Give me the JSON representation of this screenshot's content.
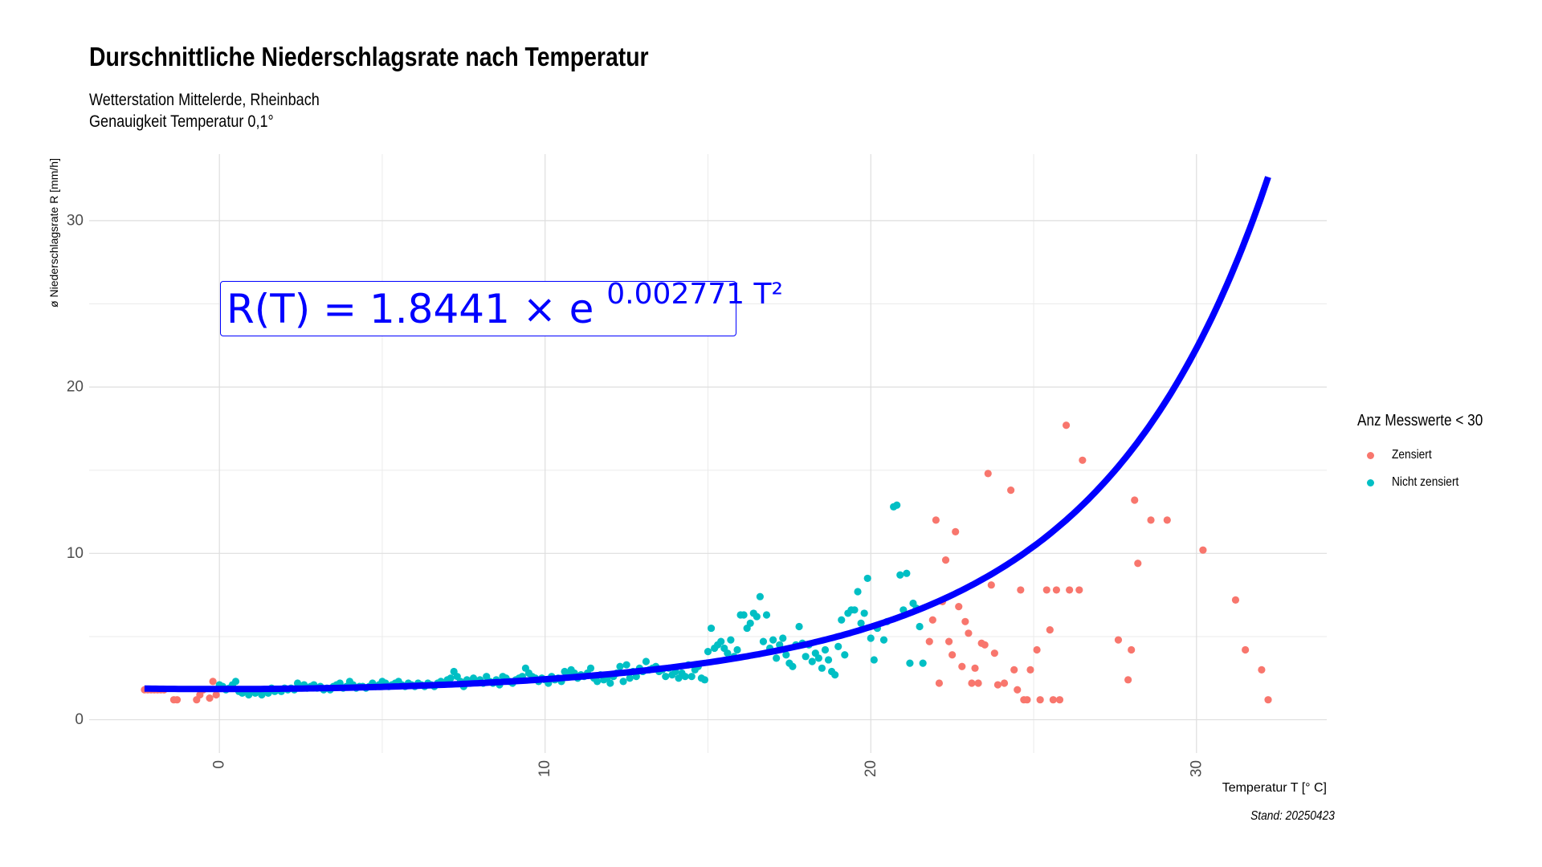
{
  "title": "Durschnittliche Niederschlagsrate nach Temperatur",
  "subtitle_line1": "Wetterstation Mittelerde, Rheinbach",
  "subtitle_line2": "Genauigkeit Temperatur 0,1°",
  "caption": "Stand: 20250423",
  "equation": {
    "lhs": "R(T) = 1.8441 × e",
    "exponent": "0.002771 T²",
    "color": "#0000ff"
  },
  "legend": {
    "title": "Anz Messwerte < 30",
    "items": [
      {
        "label": "Zensiert",
        "color": "#f8766d"
      },
      {
        "label": "Nicht zensiert",
        "color": "#00bfc4"
      }
    ]
  },
  "chart_data": {
    "type": "scatter",
    "xlabel": "Temperatur T [° C]",
    "ylabel": "ø Niederschlagsrate R [mm/h]",
    "xlim": [
      -4,
      34
    ],
    "ylim": [
      -2,
      34
    ],
    "x_ticks": [
      0,
      10,
      20,
      30
    ],
    "y_ticks": [
      0,
      10,
      20,
      30
    ],
    "grid": true,
    "legend_position": "right",
    "fit": {
      "a": 1.8441,
      "b": 0.002771,
      "x_range": [
        -2.3,
        32.2
      ],
      "color": "#0000ff"
    },
    "series": [
      {
        "name": "Zensiert",
        "color": "#f8766d",
        "points": [
          [
            -2.3,
            1.8
          ],
          [
            -2.2,
            1.8
          ],
          [
            -2.1,
            1.8
          ],
          [
            -2.0,
            1.8
          ],
          [
            -1.9,
            1.8
          ],
          [
            -1.8,
            1.8
          ],
          [
            -1.7,
            1.8
          ],
          [
            -1.4,
            1.2
          ],
          [
            -1.3,
            1.2
          ],
          [
            -0.7,
            1.2
          ],
          [
            -0.6,
            1.5
          ],
          [
            -0.5,
            1.8
          ],
          [
            -0.3,
            1.3
          ],
          [
            -0.2,
            2.3
          ],
          [
            -0.1,
            1.5
          ],
          [
            21.8,
            4.7
          ],
          [
            21.9,
            6.0
          ],
          [
            22.0,
            12.0
          ],
          [
            22.1,
            2.2
          ],
          [
            22.2,
            7.1
          ],
          [
            22.3,
            9.6
          ],
          [
            22.4,
            4.7
          ],
          [
            22.5,
            3.9
          ],
          [
            22.6,
            11.3
          ],
          [
            22.7,
            6.8
          ],
          [
            22.8,
            3.2
          ],
          [
            22.9,
            5.9
          ],
          [
            23.0,
            5.2
          ],
          [
            23.1,
            2.2
          ],
          [
            23.2,
            3.1
          ],
          [
            23.3,
            2.2
          ],
          [
            23.4,
            4.6
          ],
          [
            23.5,
            4.5
          ],
          [
            23.6,
            14.8
          ],
          [
            23.7,
            8.1
          ],
          [
            23.8,
            4.0
          ],
          [
            23.9,
            2.1
          ],
          [
            24.1,
            2.2
          ],
          [
            24.3,
            13.8
          ],
          [
            24.4,
            3.0
          ],
          [
            24.5,
            1.8
          ],
          [
            24.6,
            7.8
          ],
          [
            24.7,
            1.2
          ],
          [
            24.8,
            1.2
          ],
          [
            24.9,
            3.0
          ],
          [
            25.1,
            4.2
          ],
          [
            25.2,
            1.2
          ],
          [
            25.4,
            7.8
          ],
          [
            25.5,
            5.4
          ],
          [
            25.6,
            1.2
          ],
          [
            25.7,
            7.8
          ],
          [
            25.8,
            1.2
          ],
          [
            26.0,
            17.7
          ],
          [
            26.1,
            7.8
          ],
          [
            26.4,
            7.8
          ],
          [
            26.5,
            15.6
          ],
          [
            27.6,
            4.8
          ],
          [
            27.9,
            2.4
          ],
          [
            28.0,
            4.2
          ],
          [
            28.1,
            13.2
          ],
          [
            28.2,
            9.4
          ],
          [
            28.6,
            12.0
          ],
          [
            29.1,
            12.0
          ],
          [
            30.2,
            10.2
          ],
          [
            31.2,
            7.2
          ],
          [
            31.5,
            4.2
          ],
          [
            32.0,
            3.0
          ],
          [
            32.2,
            1.2
          ]
        ]
      },
      {
        "name": "Nicht zensiert",
        "color": "#00bfc4",
        "points": [
          [
            0.0,
            2.1
          ],
          [
            0.1,
            2.0
          ],
          [
            0.2,
            1.8
          ],
          [
            0.3,
            1.9
          ],
          [
            0.4,
            2.1
          ],
          [
            0.5,
            2.3
          ],
          [
            0.6,
            1.7
          ],
          [
            0.7,
            1.6
          ],
          [
            0.8,
            1.8
          ],
          [
            0.9,
            1.5
          ],
          [
            1.0,
            1.7
          ],
          [
            1.1,
            1.6
          ],
          [
            1.2,
            1.8
          ],
          [
            1.3,
            1.5
          ],
          [
            1.4,
            1.7
          ],
          [
            1.5,
            1.6
          ],
          [
            1.6,
            1.9
          ],
          [
            1.7,
            1.7
          ],
          [
            1.8,
            1.8
          ],
          [
            1.9,
            1.7
          ],
          [
            2.0,
            1.9
          ],
          [
            2.1,
            1.8
          ],
          [
            2.2,
            1.9
          ],
          [
            2.3,
            1.8
          ],
          [
            2.4,
            2.2
          ],
          [
            2.5,
            2.0
          ],
          [
            2.6,
            2.1
          ],
          [
            2.7,
            1.9
          ],
          [
            2.8,
            2.0
          ],
          [
            2.9,
            2.1
          ],
          [
            3.0,
            1.9
          ],
          [
            3.1,
            2.0
          ],
          [
            3.2,
            1.8
          ],
          [
            3.3,
            1.9
          ],
          [
            3.4,
            1.8
          ],
          [
            3.5,
            2.0
          ],
          [
            3.6,
            2.1
          ],
          [
            3.7,
            2.2
          ],
          [
            3.8,
            1.9
          ],
          [
            3.9,
            2.0
          ],
          [
            4.0,
            2.3
          ],
          [
            4.1,
            2.1
          ],
          [
            4.2,
            1.9
          ],
          [
            4.3,
            2.0
          ],
          [
            4.4,
            2.0
          ],
          [
            4.5,
            1.9
          ],
          [
            4.6,
            2.0
          ],
          [
            4.7,
            2.2
          ],
          [
            4.8,
            2.0
          ],
          [
            4.9,
            2.1
          ],
          [
            5.0,
            2.3
          ],
          [
            5.1,
            2.2
          ],
          [
            5.2,
            2.0
          ],
          [
            5.3,
            2.1
          ],
          [
            5.4,
            2.2
          ],
          [
            5.5,
            2.3
          ],
          [
            5.6,
            2.1
          ],
          [
            5.7,
            2.0
          ],
          [
            5.8,
            2.2
          ],
          [
            5.9,
            2.1
          ],
          [
            6.0,
            2.0
          ],
          [
            6.1,
            2.2
          ],
          [
            6.2,
            2.1
          ],
          [
            6.3,
            2.0
          ],
          [
            6.4,
            2.2
          ],
          [
            6.5,
            2.1
          ],
          [
            6.6,
            2.0
          ],
          [
            6.7,
            2.2
          ],
          [
            6.8,
            2.3
          ],
          [
            6.9,
            2.2
          ],
          [
            7.0,
            2.4
          ],
          [
            7.1,
            2.5
          ],
          [
            7.2,
            2.9
          ],
          [
            7.3,
            2.6
          ],
          [
            7.4,
            2.3
          ],
          [
            7.5,
            2.0
          ],
          [
            7.6,
            2.4
          ],
          [
            7.7,
            2.2
          ],
          [
            7.8,
            2.5
          ],
          [
            7.9,
            2.3
          ],
          [
            8.0,
            2.4
          ],
          [
            8.1,
            2.2
          ],
          [
            8.2,
            2.6
          ],
          [
            8.3,
            2.3
          ],
          [
            8.4,
            2.2
          ],
          [
            8.5,
            2.4
          ],
          [
            8.6,
            2.1
          ],
          [
            8.7,
            2.6
          ],
          [
            8.8,
            2.5
          ],
          [
            8.9,
            2.3
          ],
          [
            9.0,
            2.2
          ],
          [
            9.1,
            2.4
          ],
          [
            9.2,
            2.5
          ],
          [
            9.3,
            2.6
          ],
          [
            9.4,
            3.1
          ],
          [
            9.5,
            2.8
          ],
          [
            9.6,
            2.6
          ],
          [
            9.7,
            2.5
          ],
          [
            9.8,
            2.3
          ],
          [
            9.9,
            2.5
          ],
          [
            10.0,
            2.4
          ],
          [
            10.1,
            2.2
          ],
          [
            10.2,
            2.6
          ],
          [
            10.3,
            2.4
          ],
          [
            10.4,
            2.5
          ],
          [
            10.5,
            2.3
          ],
          [
            10.6,
            2.9
          ],
          [
            10.7,
            2.7
          ],
          [
            10.8,
            3.0
          ],
          [
            10.9,
            2.8
          ],
          [
            11.0,
            2.5
          ],
          [
            11.1,
            2.7
          ],
          [
            11.2,
            2.6
          ],
          [
            11.3,
            2.8
          ],
          [
            11.4,
            3.1
          ],
          [
            11.5,
            2.5
          ],
          [
            11.6,
            2.3
          ],
          [
            11.7,
            2.7
          ],
          [
            11.8,
            2.4
          ],
          [
            11.9,
            2.5
          ],
          [
            12.0,
            2.2
          ],
          [
            12.1,
            2.6
          ],
          [
            12.2,
            2.8
          ],
          [
            12.3,
            3.2
          ],
          [
            12.4,
            2.3
          ],
          [
            12.5,
            3.3
          ],
          [
            12.6,
            2.5
          ],
          [
            12.7,
            2.9
          ],
          [
            12.8,
            2.6
          ],
          [
            12.9,
            3.1
          ],
          [
            13.0,
            2.9
          ],
          [
            13.1,
            3.5
          ],
          [
            13.2,
            3.0
          ],
          [
            13.3,
            3.1
          ],
          [
            13.4,
            3.2
          ],
          [
            13.5,
            2.9
          ],
          [
            13.6,
            3.0
          ],
          [
            13.7,
            2.6
          ],
          [
            13.8,
            3.1
          ],
          [
            13.9,
            2.7
          ],
          [
            14.0,
            2.9
          ],
          [
            14.1,
            2.5
          ],
          [
            14.2,
            2.8
          ],
          [
            14.3,
            2.6
          ],
          [
            14.4,
            3.3
          ],
          [
            14.5,
            2.6
          ],
          [
            14.6,
            3.0
          ],
          [
            14.7,
            3.2
          ],
          [
            14.8,
            2.5
          ],
          [
            14.9,
            2.4
          ],
          [
            15.0,
            4.1
          ],
          [
            15.1,
            5.5
          ],
          [
            15.2,
            4.3
          ],
          [
            15.3,
            4.5
          ],
          [
            15.4,
            4.7
          ],
          [
            15.5,
            4.3
          ],
          [
            15.6,
            4.0
          ],
          [
            15.7,
            4.8
          ],
          [
            15.8,
            3.8
          ],
          [
            15.9,
            4.2
          ],
          [
            16.0,
            6.3
          ],
          [
            16.1,
            6.3
          ],
          [
            16.2,
            5.5
          ],
          [
            16.3,
            5.8
          ],
          [
            16.4,
            6.4
          ],
          [
            16.5,
            6.2
          ],
          [
            16.6,
            7.4
          ],
          [
            16.7,
            4.7
          ],
          [
            16.8,
            6.3
          ],
          [
            16.9,
            4.3
          ],
          [
            17.0,
            4.8
          ],
          [
            17.1,
            3.7
          ],
          [
            17.2,
            4.5
          ],
          [
            17.3,
            4.9
          ],
          [
            17.4,
            3.9
          ],
          [
            17.5,
            3.4
          ],
          [
            17.6,
            3.2
          ],
          [
            17.7,
            4.5
          ],
          [
            17.8,
            5.6
          ],
          [
            17.9,
            4.6
          ],
          [
            18.0,
            3.8
          ],
          [
            18.1,
            4.5
          ],
          [
            18.2,
            3.5
          ],
          [
            18.3,
            4.0
          ],
          [
            18.4,
            3.7
          ],
          [
            18.5,
            3.1
          ],
          [
            18.6,
            4.2
          ],
          [
            18.7,
            3.6
          ],
          [
            18.8,
            2.9
          ],
          [
            18.9,
            2.7
          ],
          [
            19.0,
            4.4
          ],
          [
            19.1,
            6.0
          ],
          [
            19.2,
            3.9
          ],
          [
            19.3,
            6.4
          ],
          [
            19.4,
            6.6
          ],
          [
            19.5,
            6.6
          ],
          [
            19.6,
            7.7
          ],
          [
            19.7,
            5.8
          ],
          [
            19.8,
            6.4
          ],
          [
            19.9,
            8.5
          ],
          [
            20.0,
            4.9
          ],
          [
            20.1,
            3.6
          ],
          [
            20.2,
            5.5
          ],
          [
            20.4,
            4.8
          ],
          [
            20.5,
            5.9
          ],
          [
            20.7,
            12.8
          ],
          [
            20.8,
            12.9
          ],
          [
            20.9,
            8.7
          ],
          [
            21.0,
            6.6
          ],
          [
            21.1,
            8.8
          ],
          [
            21.2,
            3.4
          ],
          [
            21.3,
            7.0
          ],
          [
            21.4,
            6.7
          ],
          [
            21.5,
            5.6
          ],
          [
            21.6,
            3.4
          ]
        ]
      }
    ]
  }
}
